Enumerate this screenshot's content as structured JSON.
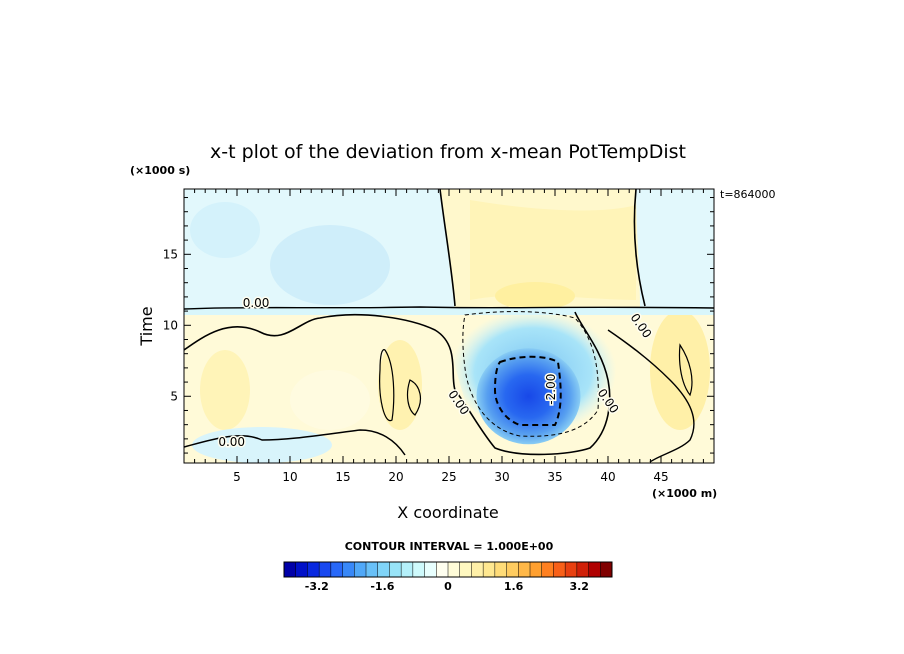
{
  "chart_data": {
    "type": "heatmap",
    "title": "x-t plot of the deviation from x-mean PotTempDist",
    "time_stamp": "t=864000",
    "xlabel": "X coordinate",
    "x_scale_note": "(×1000 m)",
    "ylabel": "Time",
    "y_scale_note": "(×1000 s)",
    "xlim": [
      0,
      50
    ],
    "ylim": [
      0.3,
      19.6
    ],
    "x_ticks": [
      5,
      10,
      15,
      20,
      25,
      30,
      35,
      40,
      45
    ],
    "y_ticks": [
      5,
      10,
      15
    ],
    "x_tick_labels": [
      "5",
      "10",
      "15",
      "20",
      "25",
      "30",
      "35",
      "40",
      "45"
    ],
    "y_tick_labels": [
      "5",
      "10",
      "15"
    ],
    "contour_interval_text": "CONTOUR INTERVAL = 1.000E+00",
    "contour_labels": [
      {
        "text": "0.00",
        "x": 6.8,
        "y": 11.3
      },
      {
        "text": "0.00",
        "x": 4.5,
        "y": 1.5
      },
      {
        "text": "0.00",
        "x": 25.6,
        "y": 4.4
      },
      {
        "text": "0.00",
        "x": 39.7,
        "y": 4.5
      },
      {
        "text": "0.00",
        "x": 42.8,
        "y": 9.8
      },
      {
        "text": "-2.00",
        "x": 35.0,
        "y": 5.5
      }
    ],
    "colorbar": {
      "min": -4.0,
      "max": 4.0,
      "tick_values": [
        -3.2,
        -1.6,
        0,
        1.6,
        3.2
      ],
      "tick_labels": [
        "-3.2",
        "-1.6",
        "0",
        "1.6",
        "3.2"
      ],
      "colors": [
        "#0000a8",
        "#0010c8",
        "#0828e0",
        "#1848f0",
        "#2868f8",
        "#3888f8",
        "#50a8f8",
        "#68c0f8",
        "#80d4f8",
        "#98e4f8",
        "#b4f0fa",
        "#cefafc",
        "#e8fffe",
        "#fffff0",
        "#fffcd8",
        "#fff8c0",
        "#fff0a8",
        "#ffe890",
        "#ffdc78",
        "#ffcc60",
        "#ffb848",
        "#ffa030",
        "#ff8020",
        "#f86018",
        "#e84010",
        "#d02008",
        "#b00000",
        "#800000"
      ]
    },
    "features": {
      "cold_core": {
        "x": 32.5,
        "y": 5.0,
        "value": -3.5
      },
      "regime_change_time": 11.3
    }
  }
}
